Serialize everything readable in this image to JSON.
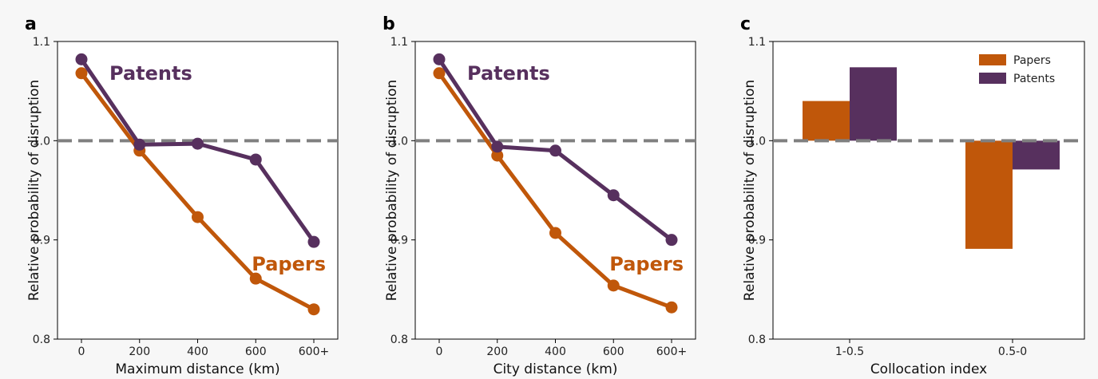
{
  "colors": {
    "papers": "#c0570a",
    "patents": "#57305e",
    "reference": "#808080"
  },
  "chart_data": [
    {
      "panel": "a",
      "type": "line",
      "categories": [
        "0",
        "200",
        "400",
        "600",
        "600+"
      ],
      "series": [
        {
          "name": "Patents",
          "values": [
            1.082,
            0.996,
            0.997,
            0.981,
            0.898
          ]
        },
        {
          "name": "Papers",
          "values": [
            1.068,
            0.99,
            0.923,
            0.861,
            0.83
          ]
        }
      ],
      "reference_line": 1.0,
      "xlabel": "Maximum distance (km)",
      "ylabel": "Relative probability of disruption",
      "ylim": [
        0.8,
        1.1
      ],
      "yticks": [
        "0.8",
        "0.9",
        "1.0",
        "1.1"
      ],
      "grid": false
    },
    {
      "panel": "b",
      "type": "line",
      "categories": [
        "0",
        "200",
        "400",
        "600",
        "600+"
      ],
      "series": [
        {
          "name": "Patents",
          "values": [
            1.082,
            0.994,
            0.99,
            0.945,
            0.9
          ]
        },
        {
          "name": "Papers",
          "values": [
            1.068,
            0.985,
            0.907,
            0.854,
            0.832
          ]
        }
      ],
      "reference_line": 1.0,
      "xlabel": "City distance (km)",
      "ylabel": "Relative probability of disruption",
      "ylim": [
        0.8,
        1.1
      ],
      "yticks": [
        "0.8",
        "0.9",
        "1.0",
        "1.1"
      ],
      "grid": false
    },
    {
      "panel": "c",
      "type": "bar",
      "categories": [
        "1-0.5",
        "0.5-0"
      ],
      "series": [
        {
          "name": "Papers",
          "values": [
            1.04,
            0.891
          ]
        },
        {
          "name": "Patents",
          "values": [
            1.074,
            0.971
          ]
        }
      ],
      "baseline": 1.0,
      "reference_line": 1.0,
      "xlabel": "Collocation index",
      "ylabel": "Relative probability of disruption",
      "ylim": [
        0.8,
        1.1
      ],
      "yticks": [
        "0.8",
        "0.9",
        "1.0",
        "1.1"
      ],
      "legend": "top-right",
      "grid": false
    }
  ]
}
